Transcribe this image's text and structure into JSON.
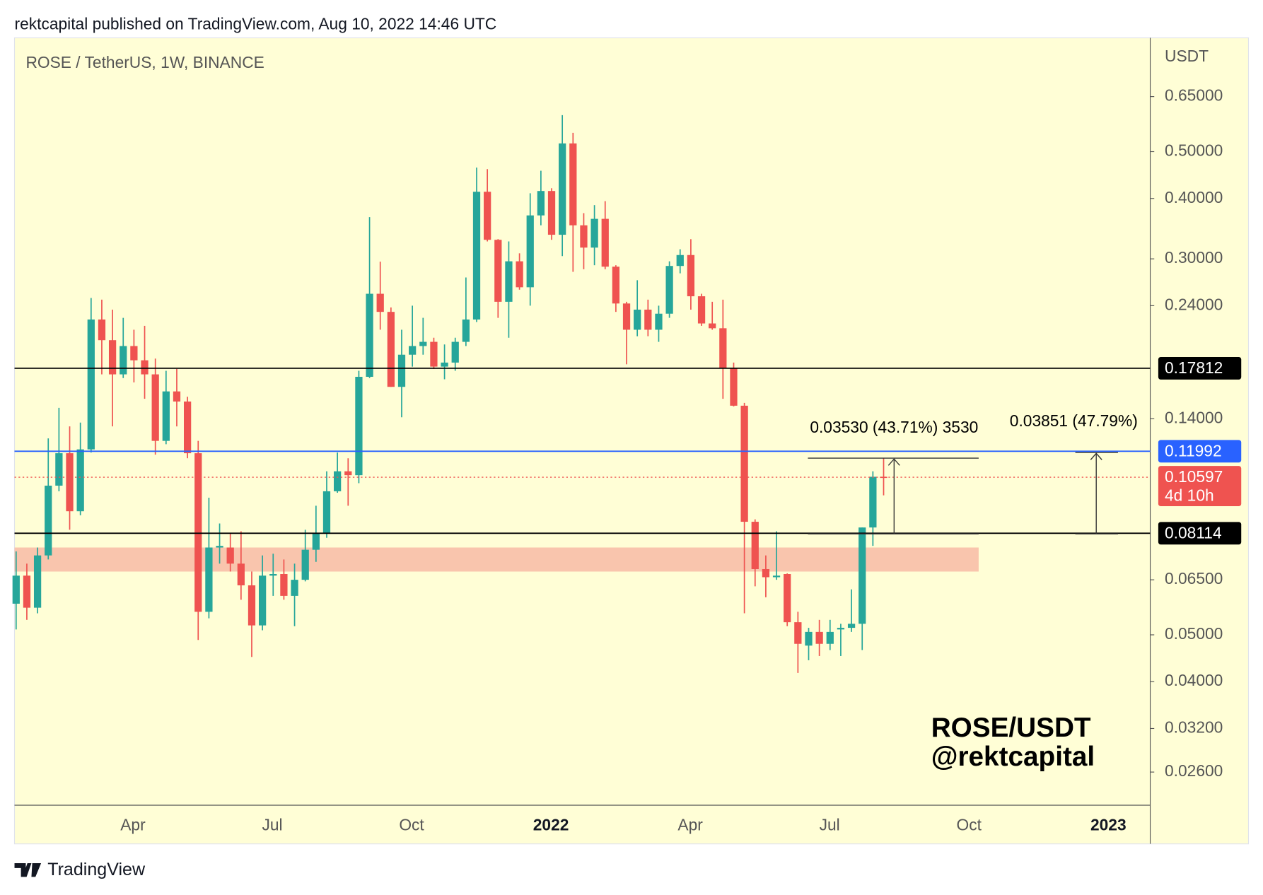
{
  "header": "rektcapital published on TradingView.com, Aug 10, 2022 14:46 UTC",
  "footer": "TradingView",
  "chart_data": {
    "type": "candlestick",
    "title": "ROSE / TetherUS, 1W, BINANCE",
    "y_axis_label": "USDT",
    "log_scale": true,
    "ylim": [
      0.0222,
      0.86
    ],
    "yticks": [
      {
        "value": 0.65,
        "label": "0.65000"
      },
      {
        "value": 0.5,
        "label": "0.50000"
      },
      {
        "value": 0.4,
        "label": "0.40000"
      },
      {
        "value": 0.3,
        "label": "0.30000"
      },
      {
        "value": 0.24,
        "label": "0.24000"
      },
      {
        "value": 0.14,
        "label": "0.14000"
      },
      {
        "value": 0.065,
        "label": "0.06500"
      },
      {
        "value": 0.05,
        "label": "0.05000"
      },
      {
        "value": 0.04,
        "label": "0.04000"
      },
      {
        "value": 0.032,
        "label": "0.03200"
      },
      {
        "value": 0.026,
        "label": "0.02600"
      }
    ],
    "xticks": [
      "Apr",
      "Jul",
      "Oct",
      "2022",
      "Apr",
      "Jul",
      "Oct",
      "2023"
    ],
    "up_color": "#26a69a",
    "down_color": "#ef5350",
    "ohlc": [
      [
        0.058,
        0.0744,
        0.0513,
        0.0663
      ],
      [
        0.0663,
        0.0702,
        0.0537,
        0.0569
      ],
      [
        0.0569,
        0.0758,
        0.0554,
        0.073
      ],
      [
        0.073,
        0.1275,
        0.0716,
        0.1018
      ],
      [
        0.1018,
        0.1475,
        0.0991,
        0.1188
      ],
      [
        0.1188,
        0.135,
        0.0825,
        0.0901
      ],
      [
        0.0901,
        0.1375,
        0.0884,
        0.121
      ],
      [
        0.121,
        0.249,
        0.1192,
        0.2247
      ],
      [
        0.2247,
        0.247,
        0.173,
        0.2036
      ],
      [
        0.2036,
        0.2355,
        0.135,
        0.173
      ],
      [
        0.173,
        0.2265,
        0.17,
        0.198
      ],
      [
        0.198,
        0.214,
        0.1665,
        0.185
      ],
      [
        0.185,
        0.218,
        0.154,
        0.173
      ],
      [
        0.173,
        0.1865,
        0.118,
        0.126
      ],
      [
        0.126,
        0.176,
        0.124,
        0.1595
      ],
      [
        0.1595,
        0.1775,
        0.135,
        0.152
      ],
      [
        0.152,
        0.1555,
        0.116,
        0.1188
      ],
      [
        0.1188,
        0.126,
        0.0488,
        0.0558
      ],
      [
        0.0558,
        0.0961,
        0.0541,
        0.0758
      ],
      [
        0.0758,
        0.085,
        0.0702,
        0.0764
      ],
      [
        0.0758,
        0.081,
        0.0676,
        0.0702
      ],
      [
        0.0702,
        0.0819,
        0.0591,
        0.0633
      ],
      [
        0.0633,
        0.0676,
        0.045,
        0.0523
      ],
      [
        0.0523,
        0.073,
        0.0511,
        0.0663
      ],
      [
        0.0663,
        0.0736,
        0.0602,
        0.0668
      ],
      [
        0.0668,
        0.0716,
        0.0591,
        0.0602
      ],
      [
        0.0602,
        0.0702,
        0.0521,
        0.065
      ],
      [
        0.065,
        0.0825,
        0.0645,
        0.075
      ],
      [
        0.075,
        0.0925,
        0.0708,
        0.081
      ],
      [
        0.081,
        0.109,
        0.0794,
        0.0991
      ],
      [
        0.0991,
        0.1192,
        0.0984,
        0.109
      ],
      [
        0.109,
        0.116,
        0.0925,
        0.107
      ],
      [
        0.107,
        0.176,
        0.103,
        0.171
      ],
      [
        0.171,
        0.366,
        0.17,
        0.254
      ],
      [
        0.254,
        0.296,
        0.214,
        0.233
      ],
      [
        0.233,
        0.238,
        0.163,
        0.163
      ],
      [
        0.163,
        0.214,
        0.141,
        0.19
      ],
      [
        0.19,
        0.24,
        0.1795,
        0.198
      ],
      [
        0.198,
        0.2265,
        0.19,
        0.202
      ],
      [
        0.202,
        0.206,
        0.1775,
        0.1795
      ],
      [
        0.1795,
        0.1995,
        0.169,
        0.183
      ],
      [
        0.183,
        0.206,
        0.176,
        0.202
      ],
      [
        0.202,
        0.2745,
        0.198,
        0.2247
      ],
      [
        0.2247,
        0.4635,
        0.222,
        0.413
      ],
      [
        0.413,
        0.46,
        0.326,
        0.3285
      ],
      [
        0.3285,
        0.3295,
        0.2265,
        0.2445
      ],
      [
        0.2445,
        0.326,
        0.206,
        0.2965
      ],
      [
        0.2965,
        0.308,
        0.259,
        0.262
      ],
      [
        0.262,
        0.41,
        0.24,
        0.369
      ],
      [
        0.369,
        0.4565,
        0.352,
        0.4145
      ],
      [
        0.4145,
        0.42,
        0.3285,
        0.3365
      ],
      [
        0.3365,
        0.595,
        0.304,
        0.52
      ],
      [
        0.52,
        0.547,
        0.282,
        0.352
      ],
      [
        0.352,
        0.373,
        0.2855,
        0.3165
      ],
      [
        0.3165,
        0.3875,
        0.291,
        0.363
      ],
      [
        0.363,
        0.395,
        0.2855,
        0.289
      ],
      [
        0.289,
        0.291,
        0.233,
        0.2425
      ],
      [
        0.2425,
        0.2445,
        0.1815,
        0.214
      ],
      [
        0.214,
        0.271,
        0.2075,
        0.2355
      ],
      [
        0.2355,
        0.247,
        0.2075,
        0.214
      ],
      [
        0.214,
        0.24,
        0.202,
        0.231
      ],
      [
        0.231,
        0.2965,
        0.2265,
        0.29
      ],
      [
        0.29,
        0.314,
        0.28,
        0.3055
      ],
      [
        0.3055,
        0.3295,
        0.2355,
        0.251
      ],
      [
        0.251,
        0.254,
        0.218,
        0.2205
      ],
      [
        0.2205,
        0.2445,
        0.214,
        0.2155
      ],
      [
        0.2155,
        0.247,
        0.154,
        0.178
      ],
      [
        0.178,
        0.183,
        0.1485,
        0.149
      ],
      [
        0.149,
        0.151,
        0.0554,
        0.0857
      ],
      [
        0.0857,
        0.0867,
        0.063,
        0.0684
      ],
      [
        0.0684,
        0.073,
        0.0598,
        0.0658
      ],
      [
        0.0658,
        0.0819,
        0.065,
        0.0663
      ],
      [
        0.0668,
        0.067,
        0.0521,
        0.0531
      ],
      [
        0.0531,
        0.0558,
        0.0417,
        0.0479
      ],
      [
        0.0475,
        0.0517,
        0.0443,
        0.0507
      ],
      [
        0.0507,
        0.0537,
        0.0452,
        0.0479
      ],
      [
        0.0479,
        0.0537,
        0.0465,
        0.0507
      ],
      [
        0.0513,
        0.0527,
        0.0452,
        0.0517
      ],
      [
        0.0517,
        0.0621,
        0.0507,
        0.0527
      ],
      [
        0.0527,
        0.0834,
        0.0465,
        0.0834
      ],
      [
        0.0834,
        0.109,
        0.0764,
        0.1062
      ],
      [
        0.1062,
        0.116,
        0.0972,
        0.10597
      ]
    ],
    "levels": [
      {
        "value": 0.17812,
        "color": "#000000"
      },
      {
        "value": 0.11992,
        "color": "#2962ff"
      },
      {
        "value": 0.08114,
        "color": "#000000"
      }
    ],
    "current": {
      "value": 0.10597,
      "color": "#ef5350",
      "countdown": "4d 10h"
    },
    "zone": {
      "range": [
        0.0676,
        0.0758
      ],
      "color": "#f8bfa8"
    },
    "annotations": [
      "0.03530 (43.71%) 3530",
      "0.03851 (47.79%)"
    ],
    "watermark": [
      "ROSE/USDT",
      "@rektcapital"
    ]
  }
}
